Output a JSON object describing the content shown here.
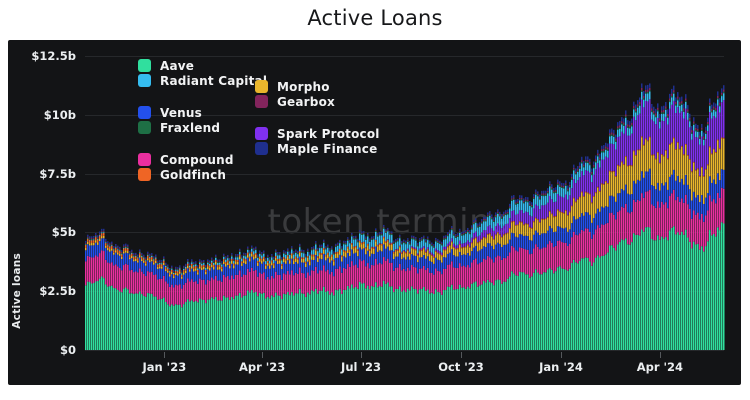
{
  "page": {
    "title": "Active Loans"
  },
  "watermark": "token terminal",
  "theme": {
    "panel_bg": "#131416",
    "grid_color": "#26282b",
    "tick_mark_color": "#55585c",
    "axis_text_color": "#eceff1",
    "watermark_color": "#3a3b3d",
    "title_color": "#17181a"
  },
  "chart_data": {
    "type": "area",
    "stacked": true,
    "title": "Active Loans",
    "xlabel": "",
    "ylabel": "Active loans",
    "unit": "$b",
    "ylim": [
      0,
      12.5
    ],
    "grid": true,
    "legend_position": "top-left",
    "yticks": [
      {
        "value": 0,
        "label": "$0"
      },
      {
        "value": 2.5,
        "label": "$2.5b"
      },
      {
        "value": 5,
        "label": "$5b"
      },
      {
        "value": 7.5,
        "label": "$7.5b"
      },
      {
        "value": 10,
        "label": "$10b"
      },
      {
        "value": 12.5,
        "label": "$12.5b"
      }
    ],
    "xticks": [
      {
        "day": 73,
        "label": "Jan '23"
      },
      {
        "day": 163,
        "label": "Apr '23"
      },
      {
        "day": 254,
        "label": "Jul '23"
      },
      {
        "day": 346,
        "label": "Oct '23"
      },
      {
        "day": 438,
        "label": "Jan '24"
      },
      {
        "day": 529,
        "label": "Apr '24"
      }
    ],
    "x_total_days": 588,
    "anchor_days": [
      0,
      16,
      31,
      46,
      61,
      77,
      92,
      113,
      132,
      146,
      163,
      193,
      224,
      254,
      273,
      294,
      316,
      346,
      377,
      407,
      438,
      469,
      498,
      512,
      529,
      543,
      559,
      570,
      588
    ],
    "series": [
      {
        "name": "Aave",
        "color": "#30df9e",
        "values": [
          2.75,
          2.95,
          2.55,
          2.45,
          2.3,
          1.95,
          2.0,
          2.15,
          2.2,
          2.45,
          2.3,
          2.4,
          2.5,
          2.7,
          2.8,
          2.55,
          2.5,
          2.65,
          2.95,
          3.25,
          3.45,
          3.95,
          4.6,
          5.1,
          4.8,
          5.0,
          4.6,
          4.45,
          5.45
        ]
      },
      {
        "name": "Compound",
        "color": "#ea2f9f",
        "values": [
          1.05,
          1.1,
          0.98,
          0.95,
          0.92,
          0.85,
          0.82,
          0.85,
          0.86,
          0.92,
          0.85,
          0.86,
          0.88,
          0.95,
          0.98,
          0.9,
          0.88,
          0.92,
          1.0,
          1.05,
          1.1,
          1.25,
          1.4,
          1.5,
          1.42,
          1.48,
          1.35,
          1.3,
          1.5
        ]
      },
      {
        "name": "Venus",
        "color": "#2350ec",
        "values": [
          0.5,
          0.52,
          0.48,
          0.46,
          0.45,
          0.43,
          0.42,
          0.44,
          0.45,
          0.48,
          0.45,
          0.46,
          0.47,
          0.5,
          0.52,
          0.48,
          0.47,
          0.5,
          0.55,
          0.58,
          0.62,
          0.7,
          0.78,
          0.85,
          0.8,
          0.84,
          0.78,
          0.75,
          0.85
        ]
      },
      {
        "name": "Morpho",
        "color": "#e9b62c",
        "values": [
          0.1,
          0.1,
          0.09,
          0.09,
          0.09,
          0.09,
          0.1,
          0.11,
          0.12,
          0.13,
          0.13,
          0.15,
          0.18,
          0.22,
          0.24,
          0.24,
          0.26,
          0.3,
          0.4,
          0.5,
          0.65,
          0.9,
          1.15,
          1.35,
          1.25,
          1.35,
          1.2,
          1.15,
          1.4
        ]
      },
      {
        "name": "Goldfinch",
        "color": "#ef6525",
        "values": [
          0.12,
          0.12,
          0.11,
          0.1,
          0.1,
          0.09,
          0.09,
          0.09,
          0.08,
          0.08,
          0.08,
          0.07,
          0.07,
          0.06,
          0.06,
          0.05,
          0.05,
          0.04,
          0.04,
          0.04,
          0.04,
          0.04,
          0.04,
          0.04,
          0.04,
          0.04,
          0.04,
          0.04,
          0.04
        ]
      },
      {
        "name": "Spark Protocol",
        "color": "#8030ef",
        "values": [
          0,
          0,
          0,
          0,
          0,
          0,
          0,
          0,
          0,
          0,
          0,
          0,
          0,
          0.01,
          0.02,
          0.04,
          0.08,
          0.15,
          0.35,
          0.5,
          0.65,
          0.95,
          1.3,
          1.55,
          1.45,
          1.55,
          1.35,
          1.3,
          1.6
        ]
      },
      {
        "name": "Radiant Capital",
        "color": "#35bdf0",
        "values": [
          0.02,
          0.03,
          0.03,
          0.03,
          0.04,
          0.05,
          0.06,
          0.08,
          0.1,
          0.12,
          0.13,
          0.17,
          0.22,
          0.3,
          0.34,
          0.3,
          0.3,
          0.34,
          0.4,
          0.42,
          0.38,
          0.3,
          0.32,
          0.33,
          0.3,
          0.3,
          0.26,
          0.24,
          0.28
        ]
      },
      {
        "name": "Fraxlend",
        "color": "#1e6f45",
        "values": [
          0.03,
          0.03,
          0.03,
          0.03,
          0.03,
          0.03,
          0.03,
          0.04,
          0.04,
          0.04,
          0.04,
          0.04,
          0.04,
          0.05,
          0.05,
          0.05,
          0.05,
          0.05,
          0.05,
          0.05,
          0.05,
          0.06,
          0.06,
          0.06,
          0.06,
          0.06,
          0.06,
          0.05,
          0.06
        ]
      },
      {
        "name": "Gearbox",
        "color": "#83245c",
        "values": [
          0.04,
          0.04,
          0.04,
          0.03,
          0.03,
          0.03,
          0.03,
          0.03,
          0.03,
          0.03,
          0.03,
          0.03,
          0.03,
          0.03,
          0.03,
          0.03,
          0.03,
          0.04,
          0.05,
          0.05,
          0.06,
          0.08,
          0.09,
          0.1,
          0.1,
          0.1,
          0.09,
          0.09,
          0.1
        ]
      },
      {
        "name": "Maple Finance",
        "color": "#1f2f8f",
        "values": [
          0.08,
          0.08,
          0.08,
          0.07,
          0.07,
          0.07,
          0.07,
          0.07,
          0.07,
          0.07,
          0.07,
          0.07,
          0.07,
          0.07,
          0.07,
          0.07,
          0.07,
          0.08,
          0.1,
          0.11,
          0.12,
          0.15,
          0.17,
          0.19,
          0.18,
          0.19,
          0.17,
          0.16,
          0.19
        ]
      }
    ],
    "legend": {
      "columns": [
        {
          "groups": [
            [
              "Aave",
              "Radiant Capital"
            ],
            [
              "Venus",
              "Fraxlend"
            ],
            [
              "Compound",
              "Goldfinch"
            ]
          ]
        },
        {
          "groups": [
            [
              "Morpho",
              "Gearbox"
            ],
            [
              "Spark Protocol",
              "Maple Finance"
            ]
          ]
        }
      ]
    }
  }
}
